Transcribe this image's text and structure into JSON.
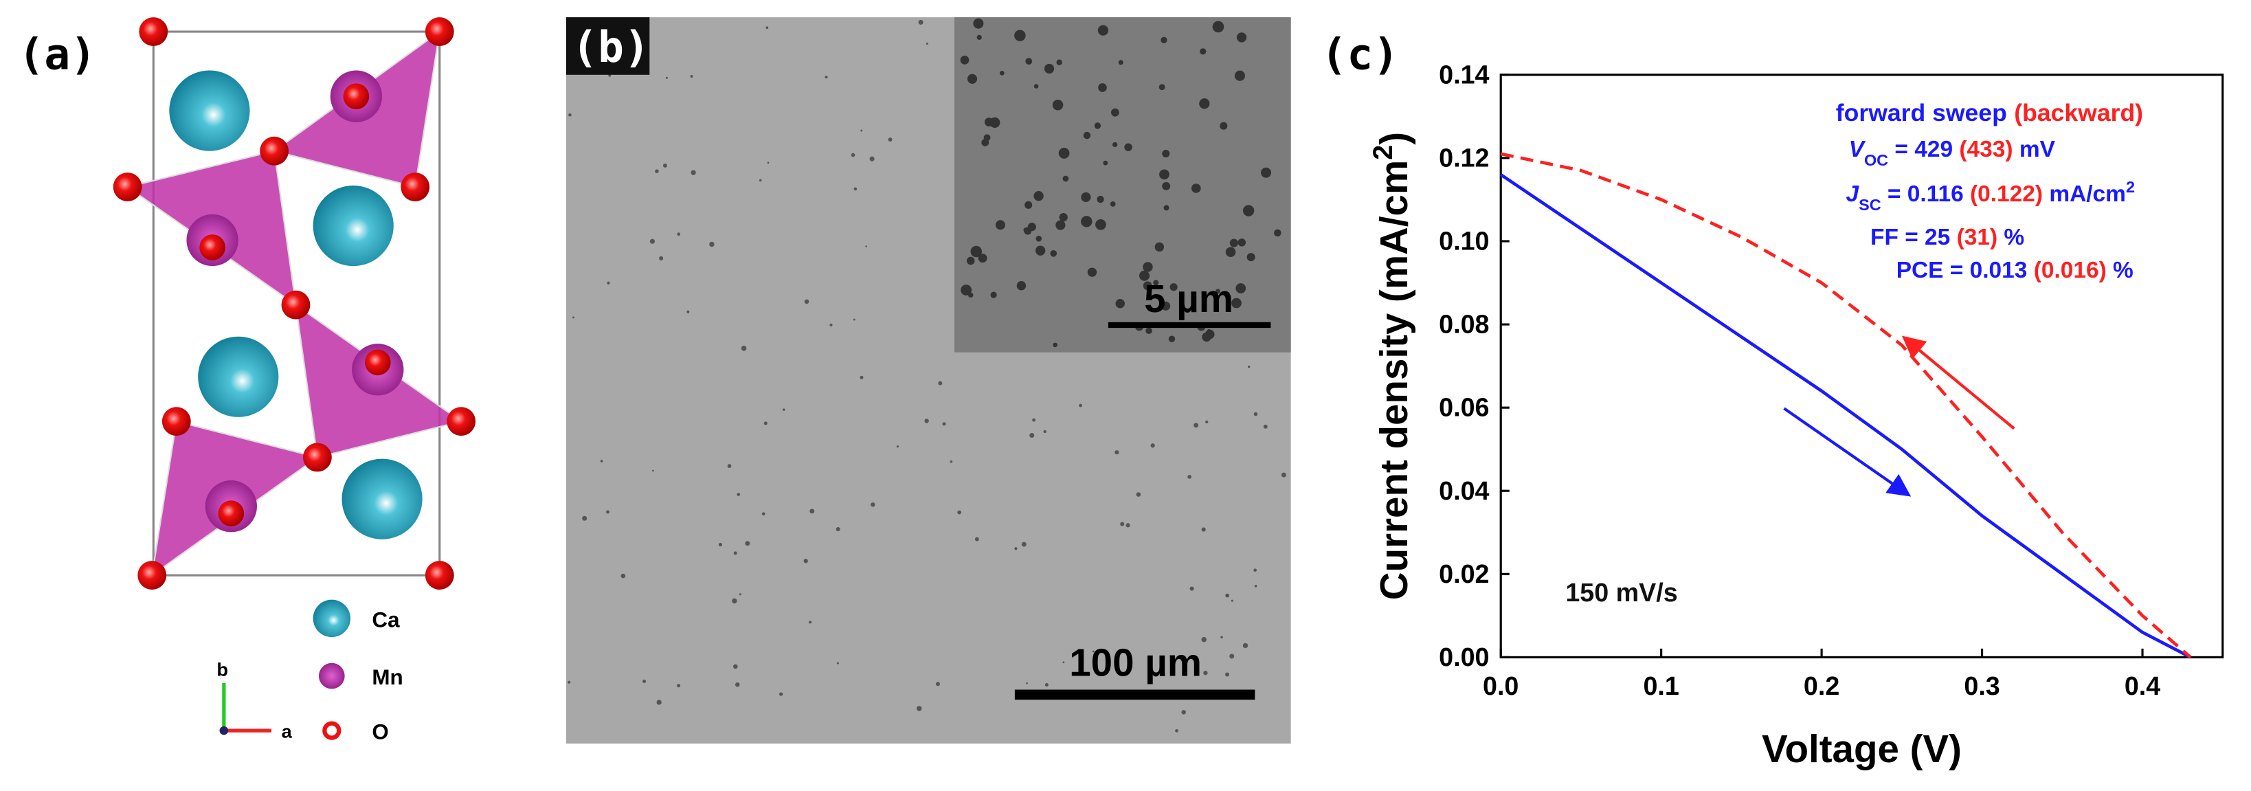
{
  "panels": {
    "a": {
      "label": "(a)",
      "legend": [
        "Ca",
        "Mn",
        "O"
      ],
      "axes": [
        "b",
        "a"
      ]
    },
    "b": {
      "label": "(b)",
      "inset_scale": "5 µm",
      "scale": "100 µm"
    }
  },
  "chart_data": {
    "type": "line",
    "panel_label": "(c)",
    "xlabel": "Voltage (V)",
    "ylabel": [
      {
        "text": "Current density (mA/cm"
      },
      {
        "text": "2",
        "style": "sup"
      },
      {
        "text": ")"
      }
    ],
    "x": [
      0,
      0.05,
      0.1,
      0.15,
      0.2,
      0.25,
      0.3,
      0.35,
      0.4,
      0.43
    ],
    "series": [
      {
        "name": "forward sweep",
        "color": "#1a1aff",
        "dash": false,
        "values": [
          0.116,
          0.103,
          0.09,
          0.077,
          0.064,
          0.05,
          0.034,
          0.02,
          0.006,
          0
        ]
      },
      {
        "name": "(backward)",
        "color": "#ff2020",
        "dash": true,
        "values": [
          0.121,
          0.117,
          0.11,
          0.101,
          0.09,
          0.075,
          0.053,
          0.03,
          0.01,
          0
        ]
      }
    ],
    "xlim": [
      0,
      0.45
    ],
    "xticks": [
      {
        "value": 0,
        "label": "0.0"
      },
      {
        "value": 0.1,
        "label": "0.1"
      },
      {
        "value": 0.2,
        "label": "0.2"
      },
      {
        "value": 0.3,
        "label": "0.3"
      },
      {
        "value": 0.4,
        "label": "0.4"
      }
    ],
    "ylim": [
      0,
      0.14
    ],
    "yticks": [
      {
        "value": 0,
        "label": "0.00"
      },
      {
        "value": 0.02,
        "label": "0.02"
      },
      {
        "value": 0.04,
        "label": "0.04"
      },
      {
        "value": 0.06,
        "label": "0.06"
      },
      {
        "value": 0.08,
        "label": "0.08"
      },
      {
        "value": 0.1,
        "label": "0.10"
      },
      {
        "value": 0.12,
        "label": "0.12"
      },
      {
        "value": 0.14,
        "label": "0.14"
      }
    ],
    "annotations": [
      {
        "parts": [
          {
            "text": "V",
            "color": "#1a1aff",
            "style": "italic"
          },
          {
            "text": "OC",
            "color": "#1a1aff",
            "style": "sub"
          },
          {
            "text": " = 429 ",
            "color": "#1a1aff"
          },
          {
            "text": "(433)",
            "color": "#ff2020"
          },
          {
            "text": " mV",
            "color": "#1a1aff"
          }
        ]
      },
      {
        "parts": [
          {
            "text": "J",
            "color": "#1a1aff",
            "style": "italic"
          },
          {
            "text": "SC",
            "color": "#1a1aff",
            "style": "sub"
          },
          {
            "text": " = 0.116 ",
            "color": "#1a1aff"
          },
          {
            "text": "(0.122)",
            "color": "#ff2020"
          },
          {
            "text": " mA/cm",
            "color": "#1a1aff"
          },
          {
            "text": "2",
            "color": "#1a1aff",
            "style": "sup"
          }
        ]
      },
      {
        "parts": [
          {
            "text": "FF = 25 ",
            "color": "#1a1aff"
          },
          {
            "text": "(31)",
            "color": "#ff2020"
          },
          {
            "text": " %",
            "color": "#1a1aff"
          }
        ]
      },
      {
        "parts": [
          {
            "text": "PCE = 0.013 ",
            "color": "#1a1aff"
          },
          {
            "text": "(0.016)",
            "color": "#ff2020"
          },
          {
            "text": " %",
            "color": "#1a1aff"
          }
        ]
      },
      {
        "parts": [
          {
            "text": "150 mV/s",
            "color": "#111"
          }
        ]
      }
    ]
  }
}
